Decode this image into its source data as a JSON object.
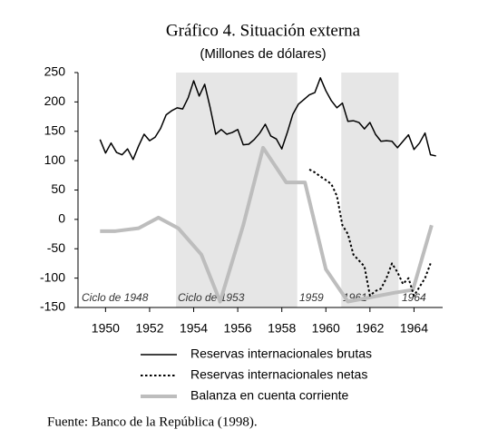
{
  "chart_data": {
    "type": "line",
    "title": "Gráfico 4. Situación externa",
    "subtitle": "(Millones de dólares)",
    "source": "Fuente: Banco de la República (1998).",
    "annotations": [
      "Ciclo de 1948",
      "Ciclo de 1953",
      "1959",
      "1961",
      "1964"
    ],
    "shaded_regions": {
      "color": "#e6e6e6",
      "ranges": [
        [
          1953.2,
          1958.7
        ],
        [
          1960.7,
          1963.3
        ]
      ]
    },
    "xlim": [
      1948.75,
      1965.3
    ],
    "xticks": [
      1950,
      1952,
      1954,
      1956,
      1958,
      1960,
      1962,
      1964
    ],
    "ylim": [
      -150,
      250
    ],
    "yticks": [
      -150,
      -100,
      -50,
      0,
      50,
      100,
      150,
      200,
      250
    ],
    "series": [
      {
        "name": "Reservas internacionales brutas",
        "color": "#000000",
        "style": "solid",
        "width": 1.5,
        "x": [
          1949.75,
          1950,
          1950.25,
          1950.5,
          1950.75,
          1951,
          1951.25,
          1951.5,
          1951.75,
          1952,
          1952.25,
          1952.5,
          1952.75,
          1953,
          1953.25,
          1953.5,
          1953.75,
          1954,
          1954.25,
          1954.5,
          1954.75,
          1955,
          1955.25,
          1955.5,
          1955.75,
          1956,
          1956.25,
          1956.5,
          1956.75,
          1957,
          1957.25,
          1957.5,
          1957.75,
          1958,
          1958.25,
          1958.5,
          1958.75,
          1959,
          1959.25,
          1959.5,
          1959.75,
          1960,
          1960.25,
          1960.5,
          1960.75,
          1961,
          1961.25,
          1961.5,
          1961.75,
          1962,
          1962.25,
          1962.5,
          1962.75,
          1963,
          1963.25,
          1963.5,
          1963.75,
          1964,
          1964.25,
          1964.5,
          1964.75,
          1965
        ],
        "values": [
          136,
          113,
          130,
          114,
          110,
          120,
          102,
          125,
          145,
          134,
          140,
          155,
          178,
          185,
          190,
          188,
          207,
          236,
          210,
          230,
          190,
          145,
          153,
          145,
          148,
          153,
          127,
          128,
          136,
          147,
          162,
          142,
          137,
          120,
          148,
          179,
          196,
          204,
          212,
          216,
          241,
          219,
          202,
          190,
          198,
          167,
          168,
          165,
          154,
          165,
          145,
          133,
          134,
          133,
          122,
          133,
          144,
          119,
          130,
          147,
          110,
          108
        ]
      },
      {
        "name": "Reservas internacionales netas",
        "color": "#000000",
        "style": "dotted",
        "width": 2,
        "x": [
          1959.25,
          1959.5,
          1959.75,
          1960,
          1960.25,
          1960.5,
          1960.75,
          1961,
          1961.25,
          1961.5,
          1961.75,
          1962,
          1962.25,
          1962.5,
          1962.75,
          1963,
          1963.25,
          1963.5,
          1963.75,
          1964,
          1964.25,
          1964.5,
          1964.75
        ],
        "values": [
          85,
          80,
          73,
          67,
          60,
          40,
          -10,
          -25,
          -60,
          -70,
          -80,
          -130,
          -122,
          -118,
          -100,
          -75,
          -90,
          -110,
          -100,
          -130,
          -115,
          -100,
          -75
        ]
      },
      {
        "name": "Balanza en cuenta corriente",
        "color": "#bdbdbd",
        "style": "solid",
        "width": 4,
        "x": [
          1949.75,
          1950.45,
          1951.5,
          1952.4,
          1953.3,
          1954.35,
          1955.2,
          1956.25,
          1957.15,
          1958.2,
          1959.05,
          1960,
          1961,
          1963.1,
          1963.95,
          1964.8
        ],
        "values": [
          -20,
          -20,
          -15,
          3,
          -15,
          -60,
          -140,
          -10,
          122,
          63,
          63,
          -85,
          -140,
          -125,
          -120,
          -10
        ]
      }
    ]
  }
}
